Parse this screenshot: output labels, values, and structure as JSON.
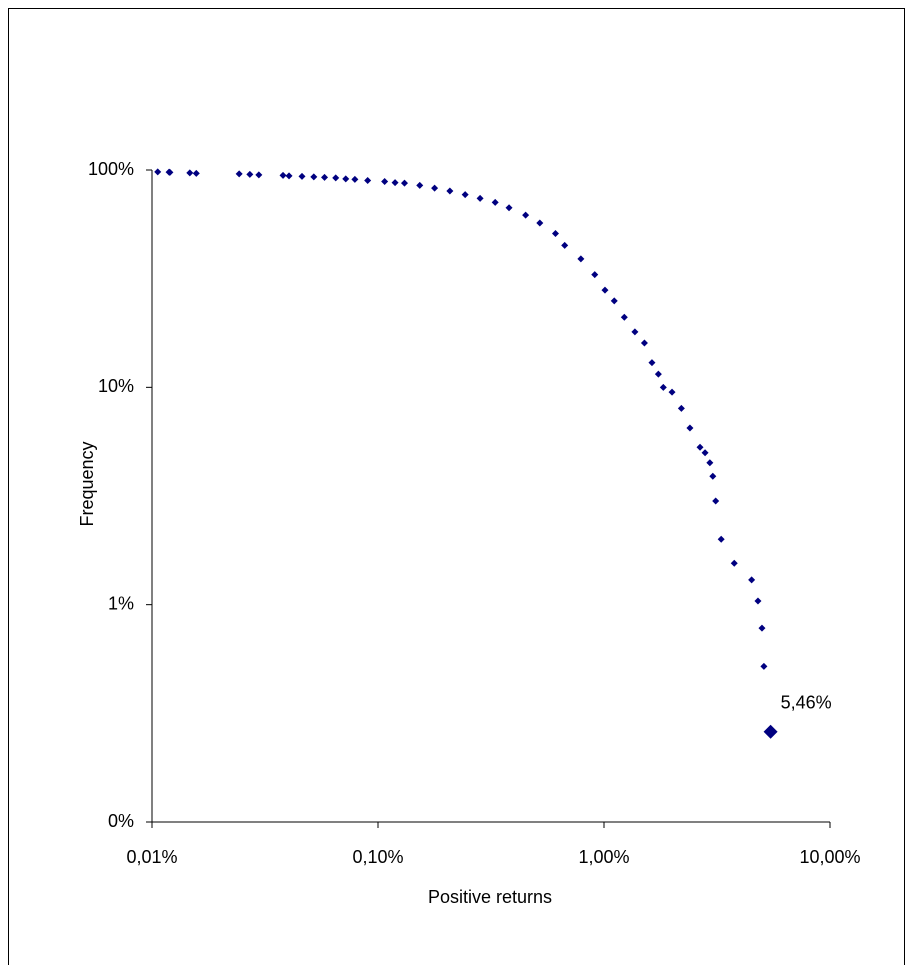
{
  "chart_data": {
    "type": "scatter",
    "x_label": "Positive returns",
    "y_label": "Frequency",
    "x_log": true,
    "y_log": true,
    "color": "#000080",
    "xlim": [
      0.01,
      10
    ],
    "xticks": [
      {
        "value": 0.01,
        "label": "0,01%"
      },
      {
        "value": 0.1,
        "label": "0,10%"
      },
      {
        "value": 1,
        "label": "1,00%"
      },
      {
        "value": 10,
        "label": "10,00%"
      }
    ],
    "ylim": [
      0.1,
      100
    ],
    "yticks": [
      {
        "value": 0.1,
        "label": "0%"
      },
      {
        "value": 1,
        "label": "1%"
      },
      {
        "value": 10,
        "label": "10%"
      },
      {
        "value": 100,
        "label": "100%"
      }
    ],
    "series": [
      {
        "name": "Positive returns",
        "x": [
          0.0106,
          0.0119,
          0.012,
          0.0147,
          0.0157,
          0.0243,
          0.0271,
          0.0297,
          0.038,
          0.0404,
          0.0461,
          0.052,
          0.058,
          0.065,
          0.072,
          0.079,
          0.09,
          0.107,
          0.119,
          0.131,
          0.153,
          0.178,
          0.208,
          0.243,
          0.283,
          0.33,
          0.38,
          0.45,
          0.52,
          0.61,
          0.67,
          0.79,
          0.91,
          1.01,
          1.11,
          1.23,
          1.37,
          1.51,
          1.63,
          1.74,
          1.83,
          2.0,
          2.2,
          2.4,
          2.66,
          2.8,
          2.94,
          3.03,
          3.12,
          3.3,
          3.77,
          4.5,
          4.8,
          5.0,
          5.1,
          5.46
        ],
        "values": [
          98,
          97.8,
          97.5,
          97,
          96.5,
          96,
          95.5,
          95,
          94.5,
          94,
          93.5,
          93,
          92.5,
          92,
          91,
          90.5,
          89.5,
          88.5,
          87.5,
          87,
          85,
          82.5,
          80,
          77,
          74,
          71,
          67,
          62,
          57,
          51,
          45,
          39,
          33,
          28,
          25,
          21,
          18,
          16,
          13,
          11.5,
          10,
          9.5,
          8,
          6.5,
          5.3,
          5,
          4.5,
          3.9,
          3.0,
          2.0,
          1.55,
          1.3,
          1.04,
          0.78,
          0.52,
          0.26
        ]
      }
    ],
    "annotation": {
      "text": "5,46%",
      "x": 5.46,
      "y": 0.26
    }
  }
}
